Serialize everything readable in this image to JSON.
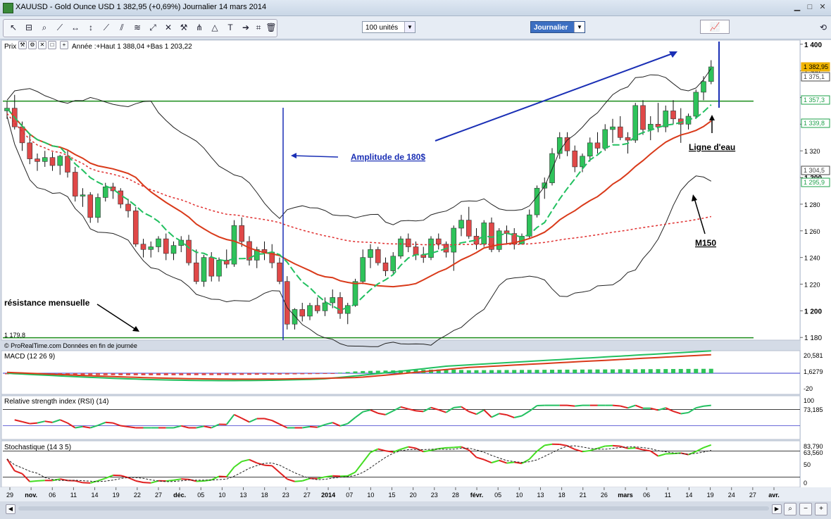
{
  "window": {
    "title": "XAUUSD - Gold Ounce USD     1 382,95 (+0,69%)     Journalier   14 mars 2014"
  },
  "toolbar": {
    "units_label": "100 unités",
    "period_label": "Journalier"
  },
  "price_panel": {
    "header": "Prix",
    "year_info": "Année :+Haut 1 388,04 +Bas 1 203,22",
    "source": "© ProRealTime.com  Données en fin de journée",
    "low_label": "1 179,8",
    "y_ticks": [
      "1 400",
      "1 380",
      "1 360",
      "1 340",
      "1 320",
      "1 300",
      "1 280",
      "1 260",
      "1 240",
      "1 220",
      "1 200",
      "1 180"
    ],
    "tags": [
      {
        "text": "1 382,95",
        "color": "#e8a800"
      },
      {
        "text": "1 375,1",
        "color": "#444444"
      },
      {
        "text": "1 357,3",
        "color": "#1ea04a"
      },
      {
        "text": "1 339,8",
        "color": "#1ea04a"
      },
      {
        "text": "1 304,5",
        "color": "#444444"
      },
      {
        "text": "1 295,9",
        "color": "#1ea04a"
      }
    ],
    "annotations": {
      "amplitude": "Amplitude de 180$",
      "ligne": "Ligne d'eau",
      "m150": "M150",
      "resistance": "résistance mensuelle"
    }
  },
  "macd_panel": {
    "header": "MACD (12 26 9)",
    "ticks": [
      "20,581",
      "1,6279",
      "-20"
    ]
  },
  "rsi_panel": {
    "header": "Relative strength index (RSI) (14)",
    "ticks": [
      "100",
      "73,185"
    ]
  },
  "stoch_panel": {
    "header": "Stochastique (14 3 5)",
    "ticks": [
      "83,790",
      "63,560",
      "50",
      "0"
    ]
  },
  "x_labels": [
    "29",
    "nov.",
    "06",
    "11",
    "14",
    "19",
    "22",
    "27",
    "déc.",
    "05",
    "10",
    "13",
    "18",
    "23",
    "27",
    "2014",
    "07",
    "10",
    "15",
    "20",
    "23",
    "28",
    "févr.",
    "05",
    "10",
    "13",
    "18",
    "21",
    "26",
    "mars",
    "06",
    "11",
    "14",
    "19",
    "24",
    "27",
    "avr."
  ],
  "colors": {
    "up": "#2ec35a",
    "down": "#e04848",
    "bollinger": "#222222",
    "ma_short": "#d93a1a",
    "ma_mid": "#22c060",
    "ma_long": "#e03030",
    "water_line": "#1a8c1a",
    "annot": "#1a2fb5"
  },
  "chart_data": {
    "type": "candlestick",
    "title": "XAUUSD - Gold Ounce USD",
    "period": "Journalier",
    "ylim": [
      1178,
      1402
    ],
    "candles": [
      [
        1350,
        1357,
        1344,
        1352
      ],
      [
        1352,
        1362,
        1336,
        1338
      ],
      [
        1338,
        1342,
        1320,
        1326
      ],
      [
        1326,
        1333,
        1310,
        1314
      ],
      [
        1314,
        1318,
        1305,
        1312
      ],
      [
        1312,
        1320,
        1308,
        1315
      ],
      [
        1315,
        1319,
        1305,
        1309
      ],
      [
        1309,
        1317,
        1302,
        1316
      ],
      [
        1316,
        1320,
        1300,
        1304
      ],
      [
        1304,
        1308,
        1282,
        1286
      ],
      [
        1286,
        1292,
        1278,
        1287
      ],
      [
        1287,
        1289,
        1266,
        1270
      ],
      [
        1270,
        1288,
        1266,
        1285
      ],
      [
        1285,
        1296,
        1282,
        1293
      ],
      [
        1293,
        1296,
        1284,
        1290
      ],
      [
        1290,
        1292,
        1277,
        1280
      ],
      [
        1280,
        1284,
        1270,
        1275
      ],
      [
        1275,
        1278,
        1248,
        1250
      ],
      [
        1250,
        1254,
        1240,
        1246
      ],
      [
        1246,
        1252,
        1240,
        1248
      ],
      [
        1248,
        1256,
        1244,
        1254
      ],
      [
        1254,
        1258,
        1238,
        1243
      ],
      [
        1243,
        1252,
        1238,
        1249
      ],
      [
        1249,
        1256,
        1244,
        1253
      ],
      [
        1253,
        1257,
        1234,
        1236
      ],
      [
        1236,
        1246,
        1220,
        1222
      ],
      [
        1222,
        1242,
        1218,
        1240
      ],
      [
        1240,
        1244,
        1222,
        1226
      ],
      [
        1226,
        1240,
        1222,
        1238
      ],
      [
        1238,
        1246,
        1232,
        1235
      ],
      [
        1235,
        1268,
        1233,
        1264
      ],
      [
        1264,
        1270,
        1248,
        1252
      ],
      [
        1252,
        1256,
        1234,
        1238
      ],
      [
        1238,
        1248,
        1232,
        1246
      ],
      [
        1246,
        1252,
        1238,
        1244
      ],
      [
        1244,
        1250,
        1232,
        1236
      ],
      [
        1236,
        1240,
        1220,
        1222
      ],
      [
        1222,
        1226,
        1186,
        1190
      ],
      [
        1190,
        1202,
        1186,
        1201
      ],
      [
        1201,
        1206,
        1192,
        1196
      ],
      [
        1196,
        1206,
        1193,
        1204
      ],
      [
        1204,
        1210,
        1198,
        1200
      ],
      [
        1200,
        1210,
        1196,
        1206
      ],
      [
        1206,
        1216,
        1202,
        1210
      ],
      [
        1210,
        1214,
        1194,
        1198
      ],
      [
        1198,
        1206,
        1190,
        1204
      ],
      [
        1204,
        1224,
        1203,
        1222
      ],
      [
        1222,
        1246,
        1220,
        1240
      ],
      [
        1240,
        1250,
        1232,
        1246
      ],
      [
        1246,
        1248,
        1234,
        1236
      ],
      [
        1236,
        1240,
        1226,
        1230
      ],
      [
        1230,
        1244,
        1228,
        1241
      ],
      [
        1241,
        1256,
        1239,
        1254
      ],
      [
        1254,
        1258,
        1244,
        1248
      ],
      [
        1248,
        1252,
        1238,
        1242
      ],
      [
        1242,
        1248,
        1236,
        1240
      ],
      [
        1240,
        1256,
        1238,
        1254
      ],
      [
        1254,
        1258,
        1246,
        1250
      ],
      [
        1250,
        1252,
        1240,
        1244
      ],
      [
        1244,
        1264,
        1230,
        1262
      ],
      [
        1262,
        1272,
        1256,
        1268
      ],
      [
        1268,
        1278,
        1254,
        1256
      ],
      [
        1256,
        1262,
        1246,
        1250
      ],
      [
        1250,
        1268,
        1248,
        1266
      ],
      [
        1266,
        1270,
        1244,
        1246
      ],
      [
        1246,
        1262,
        1244,
        1260
      ],
      [
        1260,
        1264,
        1250,
        1258
      ],
      [
        1258,
        1262,
        1246,
        1250
      ],
      [
        1250,
        1258,
        1252,
        1256
      ],
      [
        1256,
        1276,
        1254,
        1272
      ],
      [
        1272,
        1294,
        1270,
        1292
      ],
      [
        1292,
        1300,
        1284,
        1296
      ],
      [
        1296,
        1322,
        1294,
        1318
      ],
      [
        1318,
        1334,
        1314,
        1330
      ],
      [
        1330,
        1334,
        1316,
        1320
      ],
      [
        1320,
        1324,
        1304,
        1308
      ],
      [
        1308,
        1318,
        1304,
        1316
      ],
      [
        1316,
        1330,
        1312,
        1326
      ],
      [
        1326,
        1334,
        1318,
        1322
      ],
      [
        1322,
        1340,
        1320,
        1336
      ],
      [
        1336,
        1344,
        1326,
        1338
      ],
      [
        1338,
        1346,
        1328,
        1330
      ],
      [
        1330,
        1334,
        1318,
        1328
      ],
      [
        1328,
        1356,
        1326,
        1354
      ],
      [
        1354,
        1358,
        1332,
        1336
      ],
      [
        1336,
        1346,
        1328,
        1340
      ],
      [
        1340,
        1356,
        1334,
        1338
      ],
      [
        1338,
        1354,
        1334,
        1350
      ],
      [
        1350,
        1358,
        1340,
        1344
      ],
      [
        1344,
        1352,
        1326,
        1340
      ],
      [
        1340,
        1348,
        1336,
        1346
      ],
      [
        1346,
        1366,
        1344,
        1364
      ],
      [
        1364,
        1376,
        1358,
        1372
      ],
      [
        1372,
        1388,
        1370,
        1383
      ]
    ],
    "overlays": [
      "Bollinger bands",
      "moving average (red, short)",
      "moving average (green)",
      "M150 (dotted)"
    ],
    "horizontal_lines": [
      1357.3,
      1179.8
    ],
    "annotations": [
      "Amplitude de 180$",
      "Ligne d'eau",
      "M150",
      "résistance mensuelle"
    ],
    "indicators": [
      {
        "name": "MACD (12 26 9)",
        "last": [
          20.581,
          1.6279
        ]
      },
      {
        "name": "Relative strength index (RSI) (14)",
        "last": 73.185
      },
      {
        "name": "Stochastique (14 3 5)",
        "last": [
          83.79,
          63.56
        ]
      }
    ]
  }
}
